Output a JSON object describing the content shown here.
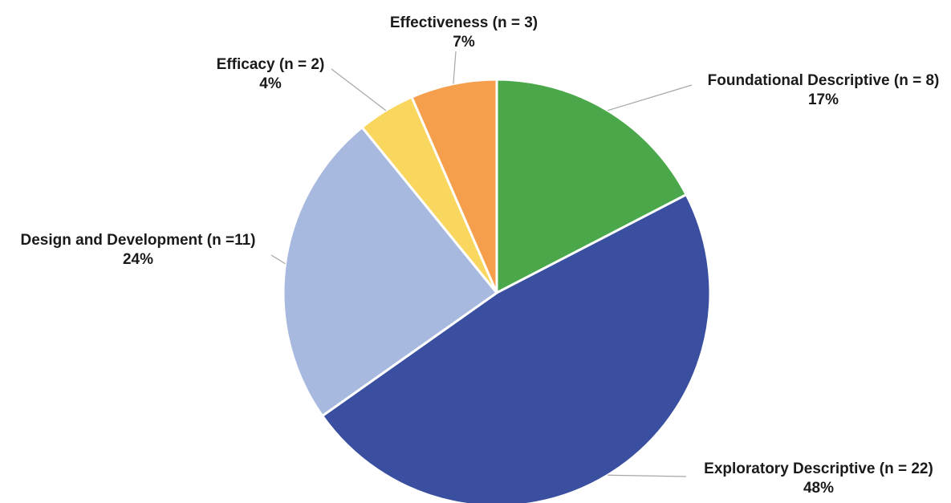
{
  "chart_data": {
    "type": "pie",
    "title": "",
    "slices": [
      {
        "label": "Foundational Descriptive (n = 8)",
        "count": 8,
        "percent_label": "17%",
        "color": "#4aa84a"
      },
      {
        "label": "Exploratory Descriptive (n = 22)",
        "count": 22,
        "percent_label": "48%",
        "color": "#3a4fa0"
      },
      {
        "label": "Design and Development (n =11)",
        "count": 11,
        "percent_label": "24%",
        "color": "#a8b9e0"
      },
      {
        "label": "Efficacy (n = 2)",
        "count": 2,
        "percent_label": "4%",
        "color": "#f9d65e"
      },
      {
        "label": "Effectiveness (n = 3)",
        "count": 3,
        "percent_label": "7%",
        "color": "#f59f4c"
      }
    ],
    "start_angle_deg": 0,
    "direction": "clockwise",
    "legend": "none",
    "data_labels": "outside with leader lines"
  }
}
